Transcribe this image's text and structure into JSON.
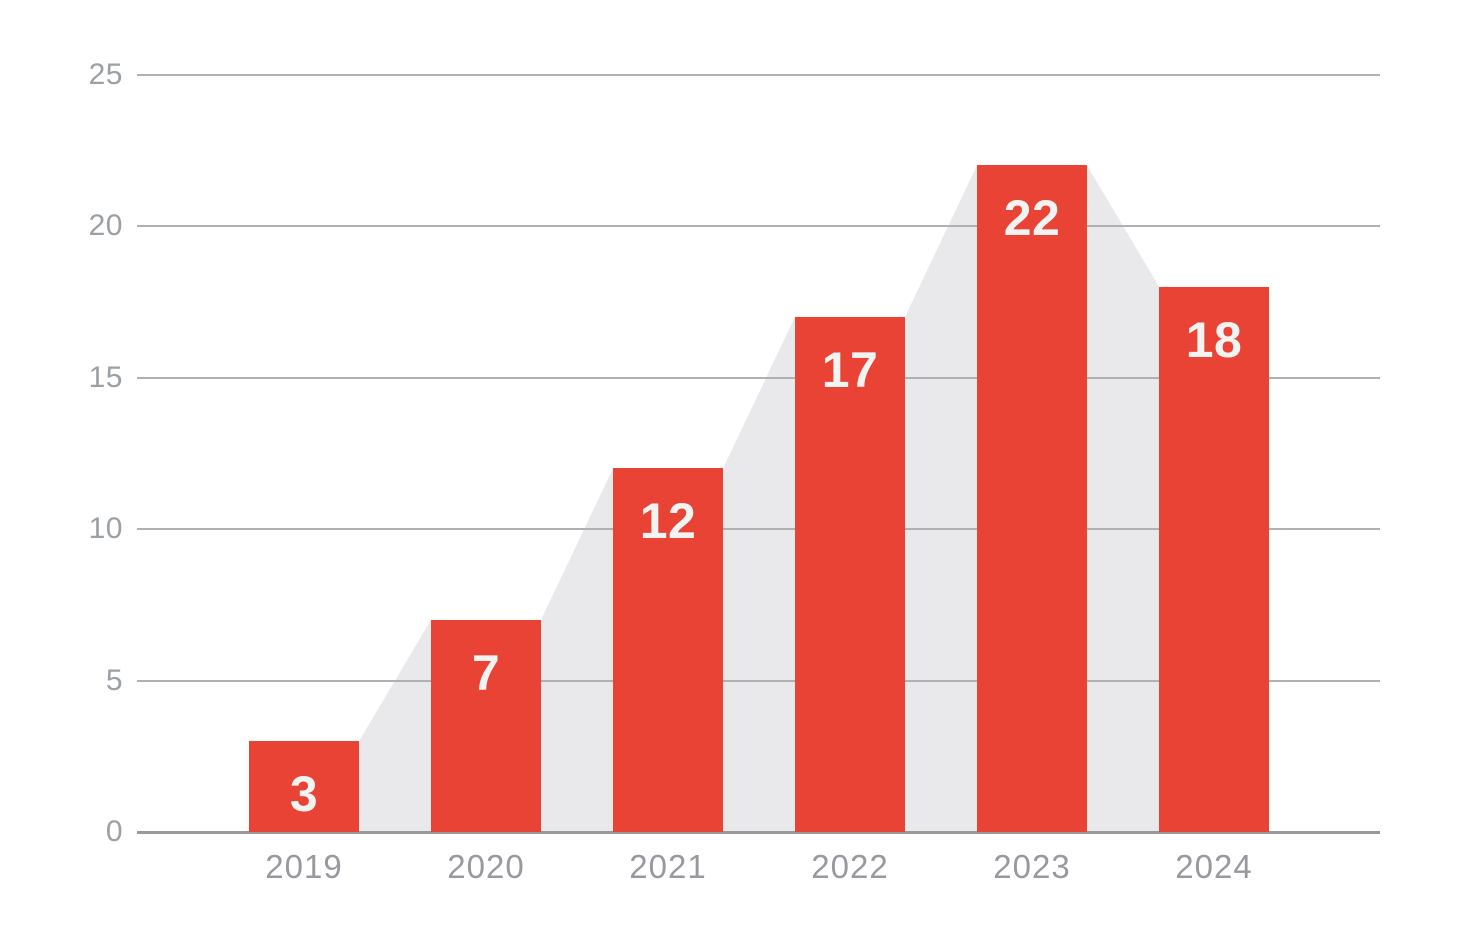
{
  "chart_data": {
    "type": "bar",
    "title": "",
    "xlabel": "",
    "ylabel": "",
    "categories": [
      "2019",
      "2020",
      "2021",
      "2022",
      "2023",
      "2024"
    ],
    "values": [
      3,
      7,
      12,
      17,
      22,
      18
    ],
    "value_labels": [
      "3",
      "7",
      "12",
      "17",
      "22",
      "18"
    ],
    "ytick_labels": [
      "0",
      "5",
      "10",
      "15",
      "20",
      "25"
    ],
    "yticks": [
      0,
      5,
      10,
      15,
      20,
      25
    ],
    "ylim": [
      0,
      25
    ],
    "grid": "horizontal",
    "legend": "none",
    "background_area_series": {
      "type": "area",
      "note": "light gray silhouette area joining the bar top corners, filled down to the baseline",
      "values": [
        3,
        7,
        12,
        17,
        22,
        18
      ]
    },
    "colors": {
      "background": "#ffffff",
      "bar_fill": "#e84334",
      "area_fill": "#e9e9ec",
      "gridline": "#aeb1b4",
      "baseline": "#97999c",
      "y_tick_text": "#9ba0a5",
      "x_tick_text": "#97999e",
      "bar_value_text": "#f3f3f1"
    }
  }
}
